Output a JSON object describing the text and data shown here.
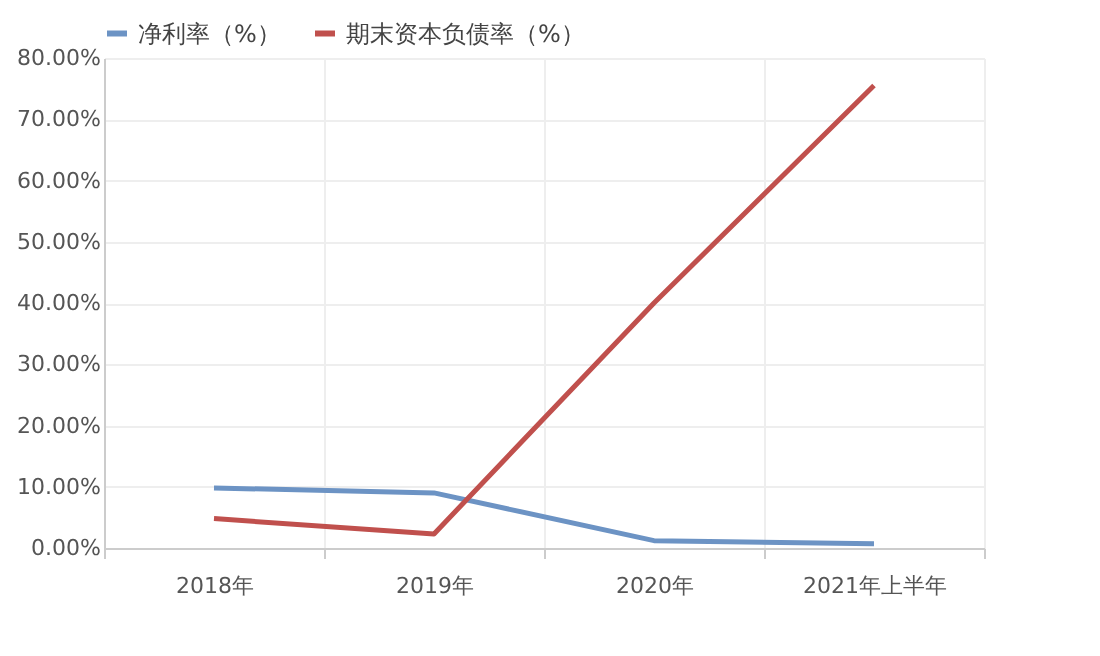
{
  "chart_data": {
    "type": "line",
    "categories": [
      "2018年",
      "2019年",
      "2020年",
      "2021年上半年"
    ],
    "series": [
      {
        "name": "净利率（%）",
        "color": "#6c93c4",
        "values": [
          9.8,
          9.0,
          1.2,
          0.7
        ]
      },
      {
        "name": "期末资本负债率（%）",
        "color": "#c0504d",
        "values": [
          4.8,
          2.3,
          40,
          75.5
        ]
      }
    ],
    "ylim": [
      0,
      80
    ],
    "yticks": [
      {
        "value": 0,
        "label": "0.00%"
      },
      {
        "value": 10,
        "label": "10.00%"
      },
      {
        "value": 20,
        "label": "20.00%"
      },
      {
        "value": 30,
        "label": "30.00%"
      },
      {
        "value": 40,
        "label": "40.00%"
      },
      {
        "value": 50,
        "label": "50.00%"
      },
      {
        "value": 60,
        "label": "60.00%"
      },
      {
        "value": 70,
        "label": "70.00%"
      },
      {
        "value": 80,
        "label": "80.00%"
      }
    ],
    "grid": true,
    "legend": "top",
    "marker": "none",
    "line_style": "solid"
  }
}
